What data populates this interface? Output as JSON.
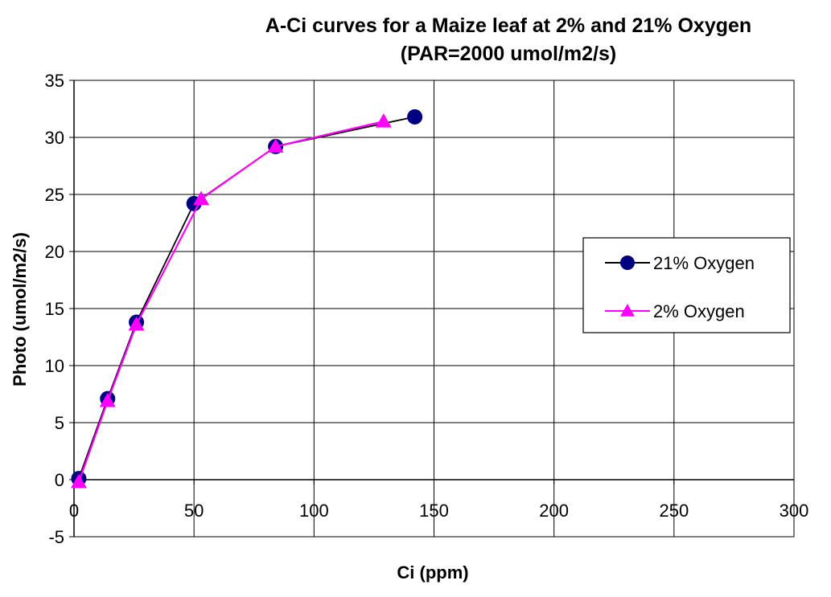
{
  "chart_data": {
    "type": "line",
    "title": "A-Ci curves for a Maize leaf at 2% and 21% Oxygen",
    "subtitle": "(PAR=2000 umol/m2/s)",
    "xlabel": "Ci (ppm)",
    "ylabel": "Photo (umol/m2/s)",
    "xlim": [
      0,
      300
    ],
    "ylim": [
      -5,
      35
    ],
    "xticks": [
      0,
      50,
      100,
      150,
      200,
      250,
      300
    ],
    "yticks": [
      -5,
      0,
      5,
      10,
      15,
      20,
      25,
      30,
      35
    ],
    "grid": true,
    "legend_position": "right",
    "series": [
      {
        "name": "21% Oxygen",
        "marker": "circle",
        "color": "#000080",
        "line_color": "#000000",
        "x": [
          2,
          14,
          26,
          50,
          84,
          142
        ],
        "y": [
          0.1,
          7.1,
          13.8,
          24.2,
          29.2,
          31.8
        ]
      },
      {
        "name": "2% Oxygen",
        "marker": "triangle",
        "color": "#ff00ff",
        "line_color": "#ff00ff",
        "x": [
          2,
          14,
          26,
          53,
          84,
          129
        ],
        "y": [
          -0.2,
          6.9,
          13.6,
          24.6,
          29.2,
          31.4
        ]
      }
    ]
  }
}
